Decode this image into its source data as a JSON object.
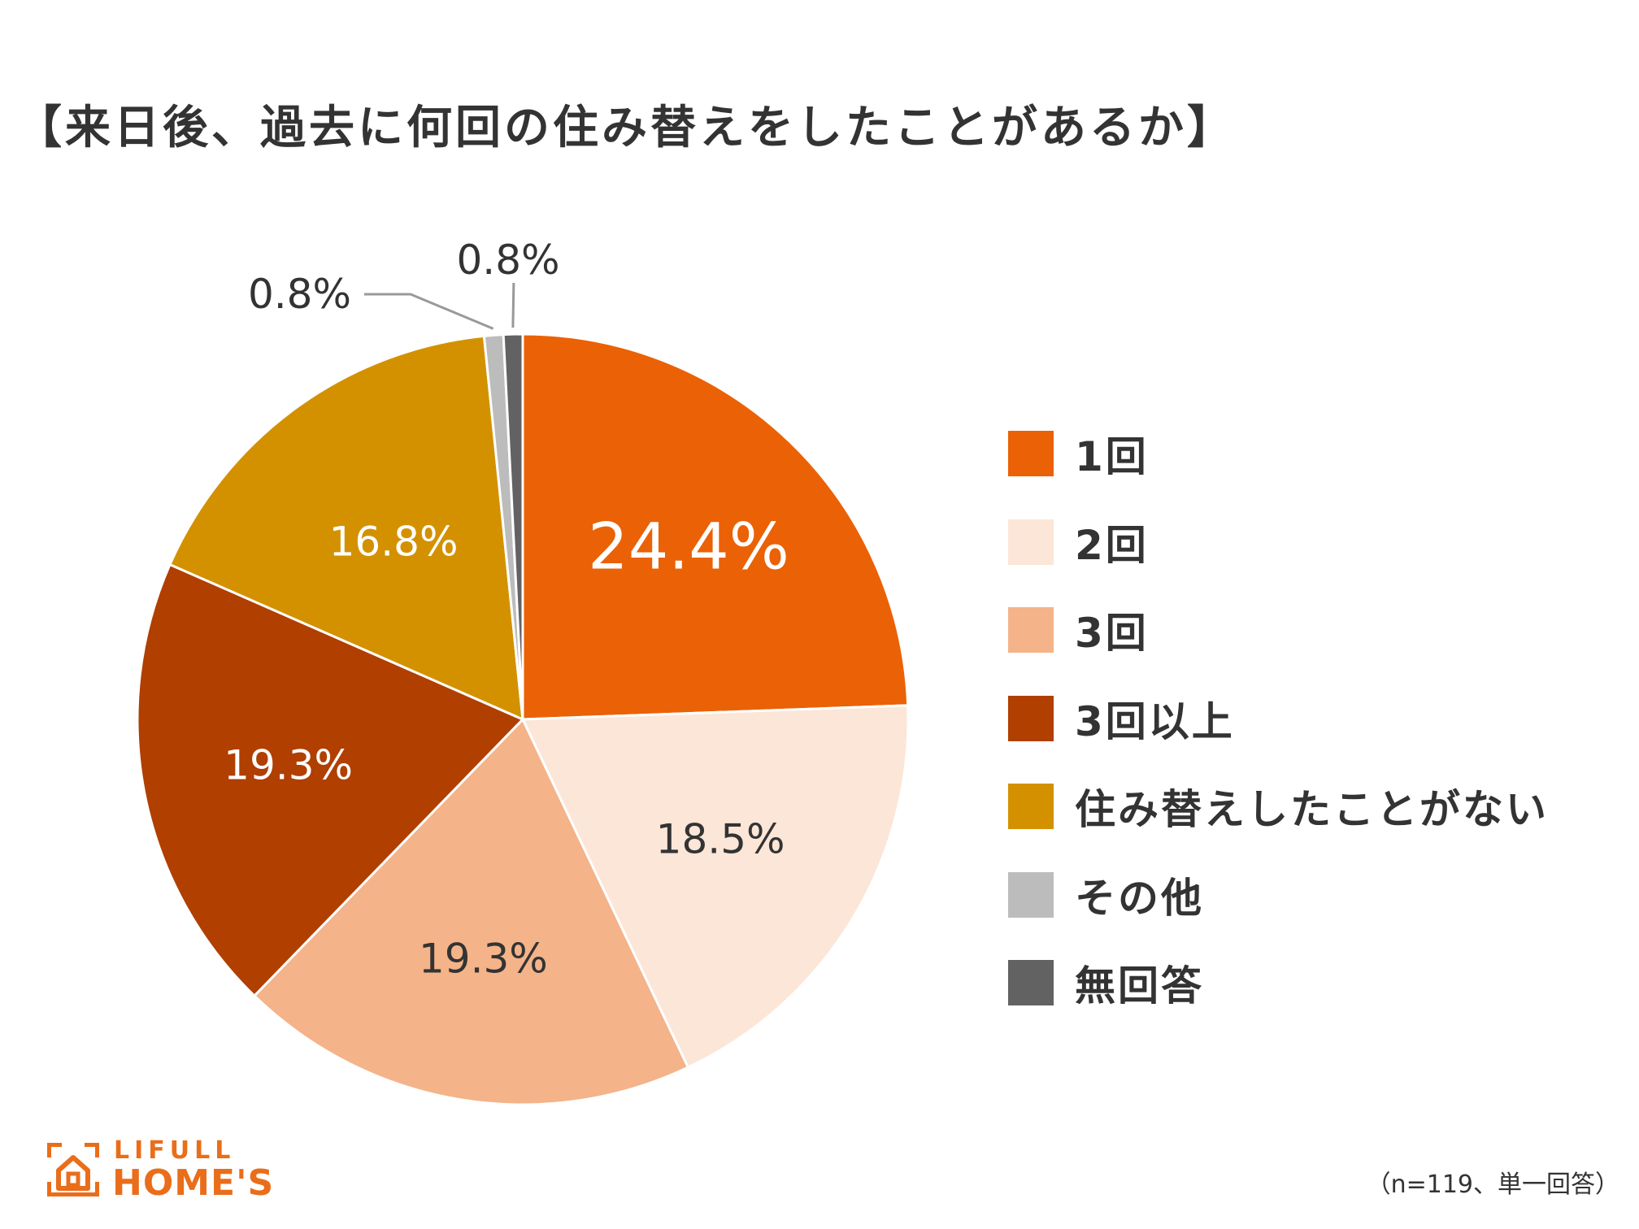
{
  "chart_data": {
    "type": "pie",
    "title": "【来日後、過去に何回の住み替えをしたことがあるか】",
    "categories": [
      "1回",
      "2回",
      "3回",
      "3回以上",
      "住み替えしたことがない",
      "その他",
      "無回答"
    ],
    "values": [
      24.4,
      18.5,
      19.3,
      19.3,
      16.8,
      0.8,
      0.8
    ],
    "value_labels": [
      "24.4%",
      "18.5%",
      "19.3%",
      "19.3%",
      "16.8%",
      "0.8%",
      "0.8%"
    ],
    "colors": [
      "#eb6105",
      "#fce6d8",
      "#f4b389",
      "#b03f00",
      "#d39100",
      "#bcbcbc",
      "#626262"
    ],
    "label_colors": [
      "#ffffff",
      "#333333",
      "#333333",
      "#ffffff",
      "#ffffff",
      "#333333",
      "#333333"
    ],
    "start": "top",
    "direction": "clockwise",
    "legend_position": "right"
  },
  "footnote": "（n=119、単一回答）",
  "logo": {
    "text_top": "LIFULL",
    "text_bottom": "HOME'S",
    "color": "#ea6d1a"
  }
}
